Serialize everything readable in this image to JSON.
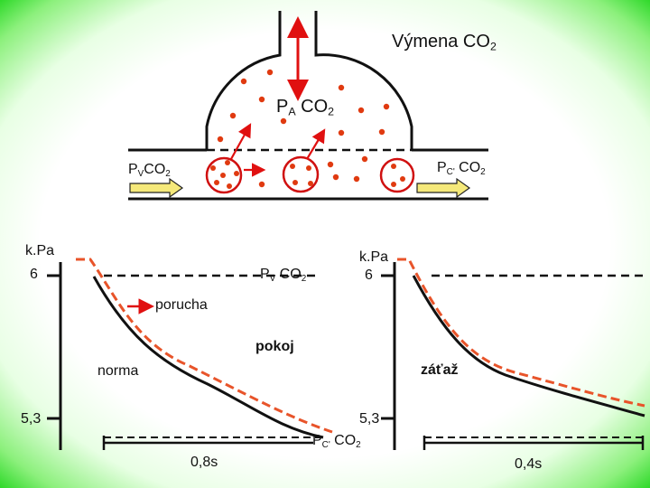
{
  "title": {
    "text": "Výmena CO",
    "sub": "2"
  },
  "alveolus": {
    "label": "P",
    "sub": "A",
    "gas": "CO",
    "gas_sub": "2"
  },
  "capillary": {
    "venous": {
      "label": "P",
      "sub": "V",
      "gas": "CO",
      "gas_sub": "2"
    },
    "end": {
      "label": "P",
      "sub": "C'",
      "gas": "CO",
      "gas_sub": "2"
    }
  },
  "left_chart": {
    "unit": "k.Pa",
    "y_top": "6",
    "y_bottom": "5,3",
    "curve_venous": {
      "label": "P",
      "sub": "V",
      "gas": "CO",
      "gas_sub": "2"
    },
    "annotation_arrow": "porucha",
    "annotation_rest": "pokoj",
    "annotation_normal": "norma",
    "time": "0,8s"
  },
  "right_chart": {
    "unit": "k.Pa",
    "y_top": "6",
    "y_bottom": "5,3",
    "annotation_exercise": "záťaž",
    "time": "0,4s",
    "x_label": {
      "label": "P",
      "sub": "C'",
      "gas": "CO",
      "gas_sub": "2"
    }
  },
  "colors": {
    "dot": "#e03a10",
    "arrow": "#e01010",
    "dashed_curve": "#e8542a",
    "border_green": "#2fd92a",
    "solid": "#111111"
  }
}
